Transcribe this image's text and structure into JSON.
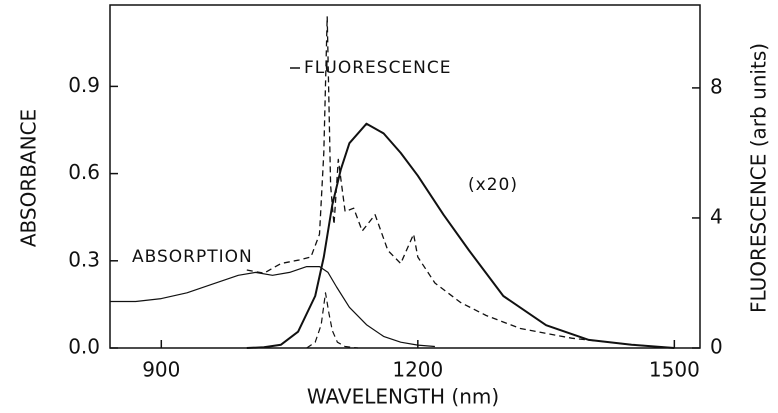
{
  "chart_data": {
    "type": "line",
    "xlabel": "WAVELENGTH (nm)",
    "ylabel": "ABSORBANCE",
    "y2label": "FLUORESCENCE (arb units)",
    "xlim": [
      840,
      1530
    ],
    "ylim": [
      0,
      1.18
    ],
    "y2lim": [
      0,
      10.55
    ],
    "xticks": [
      900,
      1200,
      1500
    ],
    "yticks": [
      {
        "value": 0,
        "label": "0.0"
      },
      0.3,
      0.6,
      0.9
    ],
    "y2ticks": [
      0,
      4,
      8
    ],
    "annotations": [
      "ABSORPTION",
      "FLUORESCENCE",
      "(x20)"
    ],
    "series": [
      {
        "color": "#111",
        "style": "solid",
        "width": 1.2,
        "x": [
          840,
          870,
          900,
          930,
          960,
          990,
          1010,
          1030,
          1050,
          1070,
          1085,
          1095,
          1105,
          1120,
          1140,
          1160,
          1180,
          1200,
          1220
        ],
        "values": [
          0.16,
          0.16,
          0.17,
          0.19,
          0.22,
          0.25,
          0.26,
          0.25,
          0.26,
          0.28,
          0.28,
          0.26,
          0.21,
          0.14,
          0.08,
          0.04,
          0.02,
          0.01,
          0.005
        ]
      },
      {
        "color": "#111",
        "style": "solid",
        "width": 2,
        "axis": "y2",
        "x": [
          1000,
          1020,
          1040,
          1060,
          1080,
          1090,
          1100,
          1110,
          1120,
          1140,
          1160,
          1180,
          1200,
          1230,
          1260,
          1300,
          1350,
          1400,
          1450,
          1500
        ],
        "values": [
          0,
          0.02,
          0.1,
          0.5,
          1.6,
          2.8,
          4.4,
          5.5,
          6.3,
          6.9,
          6.6,
          6.0,
          5.3,
          4.1,
          3.0,
          1.6,
          0.7,
          0.25,
          0.1,
          0
        ]
      },
      {
        "color": "#111",
        "style": "dashed",
        "width": 1.3,
        "axis": "y2",
        "x": [
          1000,
          1020,
          1040,
          1060,
          1075,
          1085,
          1090,
          1094,
          1098,
          1102,
          1107,
          1115,
          1125,
          1135,
          1150,
          1165,
          1180,
          1195,
          1200,
          1220,
          1250,
          1280,
          1320,
          1380,
          1450,
          1500
        ],
        "values": [
          2.4,
          2.3,
          2.6,
          2.7,
          2.8,
          3.5,
          6.0,
          10.2,
          5.0,
          3.8,
          5.8,
          4.2,
          4.3,
          3.6,
          4.1,
          3.0,
          2.6,
          3.5,
          2.8,
          2.0,
          1.4,
          1.0,
          0.6,
          0.3,
          0.1,
          0
        ]
      },
      {
        "color": "#111",
        "style": "dashed",
        "width": 1.2,
        "x": [
          1070,
          1080,
          1087,
          1092,
          1096,
          1100,
          1106,
          1115,
          1130
        ],
        "values": [
          0.0,
          0.02,
          0.08,
          0.19,
          0.12,
          0.06,
          0.02,
          0.005,
          0
        ]
      }
    ]
  }
}
